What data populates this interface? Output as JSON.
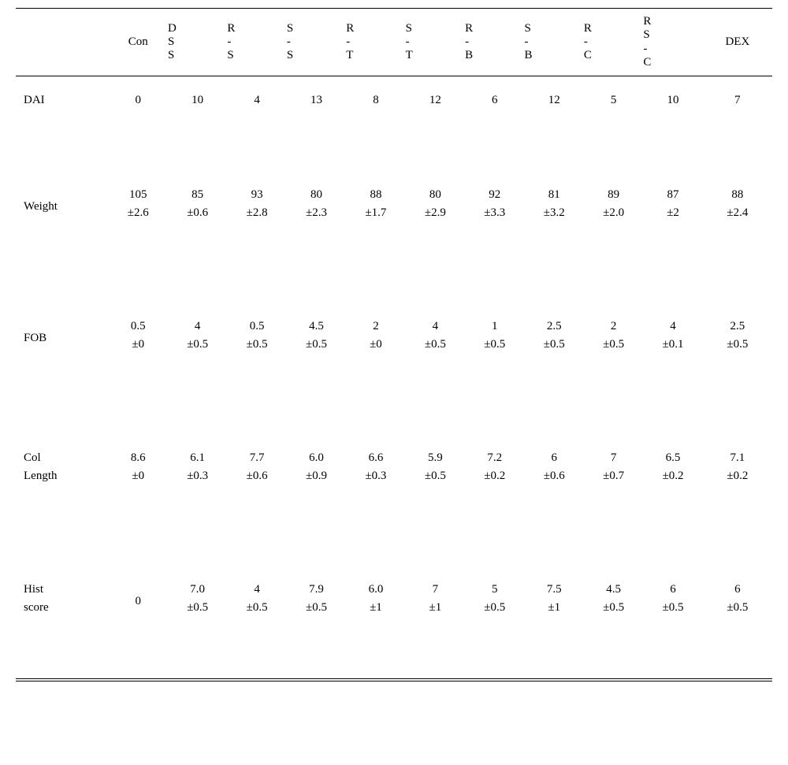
{
  "type": "table",
  "background_color": "#ffffff",
  "text_color": "#000000",
  "rule_color": "#000000",
  "font_family": "Times New Roman",
  "font_size_pt": 11,
  "columns": {
    "row_label": "",
    "h0": "Con",
    "h1": "D\nS\nS",
    "h2": "R\n-\nS",
    "h3": "S\n-\nS",
    "h4": "R\n-\nT",
    "h5": "S\n-\nT",
    "h6": "R\n-\nB",
    "h7": "S\n-\nB",
    "h8": "R\n-\nC",
    "h9": "R\nS\n-\nC",
    "h10": "DEX"
  },
  "rows": {
    "dai": {
      "label": "DAI",
      "v0": "0",
      "v1": "10",
      "v2": "4",
      "v3": "13",
      "v4": "8",
      "v5": "12",
      "v6": "6",
      "v7": "12",
      "v8": "5",
      "v9": "10",
      "v10": "7"
    },
    "weight": {
      "label": "Weight",
      "v0": "105",
      "v1": "85",
      "v2": "93",
      "v3": "80",
      "v4": "88",
      "v5": "80",
      "v6": "92",
      "v7": "81",
      "v8": "89",
      "v9": "87",
      "v10": "88",
      "e0": "±2.6",
      "e1": "±0.6",
      "e2": "±2.8",
      "e3": "±2.3",
      "e4": "±1.7",
      "e5": "±2.9",
      "e6": "±3.3",
      "e7": "±3.2",
      "e8": "±2.0",
      "e9": "±2",
      "e10": "±2.4"
    },
    "fob": {
      "label": "FOB",
      "v0": "0.5",
      "v1": "4",
      "v2": "0.5",
      "v3": "4.5",
      "v4": "2",
      "v5": "4",
      "v6": "1",
      "v7": "2.5",
      "v8": "2",
      "v9": "4",
      "v10": "2.5",
      "e0": "±0",
      "e1": "±0.5",
      "e2": "±0.5",
      "e3": "±0.5",
      "e4": "±0",
      "e5": "±0.5",
      "e6": "±0.5",
      "e7": "±0.5",
      "e8": "±0.5",
      "e9": "±0.1",
      "e10": "±0.5"
    },
    "col": {
      "label_top": "Col",
      "label_bot": "Length",
      "v0": "8.6",
      "v1": "6.1",
      "v2": "7.7",
      "v3": "6.0",
      "v4": "6.6",
      "v5": "5.9",
      "v6": "7.2",
      "v7": "6",
      "v8": "7",
      "v9": "6.5",
      "v10": "7.1",
      "e0": "±0",
      "e1": "±0.3",
      "e2": "±0.6",
      "e3": "±0.9",
      "e4": "±0.3",
      "e5": "±0.5",
      "e6": "±0.2",
      "e7": "±0.6",
      "e8": "±0.7",
      "e9": "±0.2",
      "e10": "±0.2"
    },
    "hist": {
      "label_top": "Hist",
      "label_bot": "score",
      "v0": "0",
      "v1": "7.0",
      "v2": "4",
      "v3": "7.9",
      "v4": "6.0",
      "v5": "7",
      "v6": "5",
      "v7": "7.5",
      "v8": "4.5",
      "v9": "6",
      "v10": "6",
      "e1": "±0.5",
      "e2": "±0.5",
      "e3": "±0.5",
      "e4": "±1",
      "e5": "±1",
      "e6": "±0.5",
      "e7": "±1",
      "e8": "±0.5",
      "e9": "±0.5",
      "e10": "±0.5"
    }
  }
}
